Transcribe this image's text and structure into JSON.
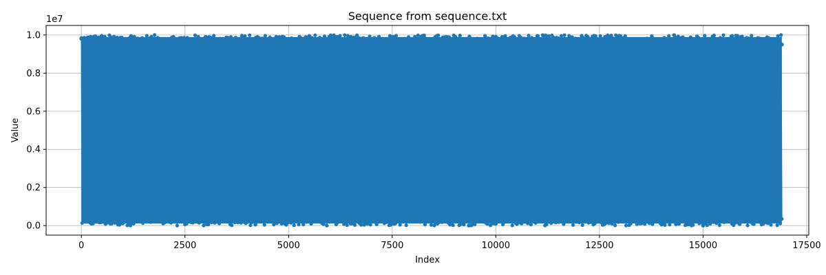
{
  "chart_data": {
    "type": "line",
    "title": "Sequence from sequence.txt",
    "xlabel": "Index",
    "ylabel": "Value",
    "offset_label": "1e7",
    "xlim": [
      -850,
      17550
    ],
    "ylim": [
      -500000,
      10500000
    ],
    "x_ticks": [
      0,
      2500,
      5000,
      7500,
      10000,
      12500,
      15000,
      17500
    ],
    "x_tick_labels": [
      "0",
      "2500",
      "5000",
      "7500",
      "10000",
      "12500",
      "15000",
      "17500"
    ],
    "y_ticks": [
      0,
      2000000,
      4000000,
      6000000,
      8000000,
      10000000
    ],
    "y_tick_labels": [
      "0.0",
      "0.2",
      "0.4",
      "0.6",
      "0.8",
      "1.0"
    ],
    "grid": true,
    "marker": "circle",
    "series": [
      {
        "color": "#1f77b4",
        "x_range": [
          0,
          16900
        ],
        "y_range": [
          0,
          10000000
        ],
        "points": [
          [
            0,
            9800000
          ],
          [
            120,
            200000
          ],
          [
            300,
            9900000
          ],
          [
            700,
            100000
          ],
          [
            1200,
            9950000
          ],
          [
            2000,
            150000
          ],
          [
            3000,
            9900000
          ],
          [
            4200,
            50000
          ],
          [
            5500,
            9950000
          ],
          [
            6500,
            100000
          ],
          [
            6650,
            9980000
          ],
          [
            7500,
            200000
          ],
          [
            8800,
            9900000
          ],
          [
            10000,
            100000
          ],
          [
            11000,
            9950000
          ],
          [
            12500,
            300000
          ],
          [
            12700,
            9980000
          ],
          [
            14000,
            50000
          ],
          [
            14300,
            9990000
          ],
          [
            15000,
            0
          ],
          [
            15700,
            9950000
          ],
          [
            16200,
            100000
          ],
          [
            16900,
            9500000
          ]
        ]
      }
    ]
  }
}
